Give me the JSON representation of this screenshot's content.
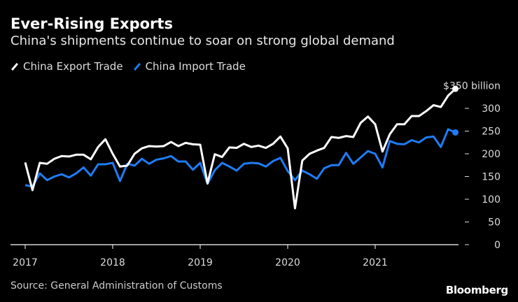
{
  "title": "Ever-Rising Exports",
  "subtitle": "China's shipments continue to soar on strong global demand",
  "source": "Source: General Administration of Customs",
  "brand": "Bloomberg",
  "colors": {
    "export": "#ffffff",
    "import": "#1f7cf5",
    "background": "#000000"
  },
  "chart_data": {
    "type": "line",
    "x_start": "2017-01",
    "x_frequency": "monthly",
    "xticks": [
      "2017",
      "2018",
      "2019",
      "2020",
      "2021"
    ],
    "yticks": [
      0,
      50,
      100,
      150,
      200,
      250,
      300
    ],
    "top_label": "$350 billion",
    "ylim": [
      0,
      350
    ],
    "grid": false,
    "legend": "top-left",
    "series": [
      {
        "name": "China Export Trade",
        "values": [
          181,
          120,
          180,
          178,
          189,
          195,
          194,
          198,
          198,
          188,
          215,
          232,
          200,
          172,
          174,
          200,
          212,
          217,
          216,
          217,
          226,
          217,
          224,
          221,
          220,
          135,
          199,
          193,
          214,
          213,
          222,
          215,
          218,
          213,
          222,
          238,
          212,
          80,
          185,
          200,
          207,
          213,
          237,
          235,
          239,
          237,
          268,
          282,
          265,
          205,
          243,
          265,
          265,
          283,
          283,
          294,
          307,
          303,
          328,
          343
        ]
      },
      {
        "name": "China Import Trade",
        "values": [
          131,
          128,
          157,
          142,
          150,
          155,
          148,
          157,
          170,
          152,
          177,
          177,
          180,
          140,
          178,
          174,
          189,
          178,
          187,
          190,
          195,
          183,
          183,
          165,
          180,
          134,
          164,
          180,
          172,
          163,
          178,
          180,
          179,
          172,
          184,
          191,
          162,
          142,
          163,
          155,
          145,
          168,
          175,
          175,
          202,
          178,
          192,
          206,
          200,
          170,
          228,
          222,
          221,
          230,
          225,
          236,
          238,
          215,
          254,
          247
        ]
      }
    ]
  }
}
